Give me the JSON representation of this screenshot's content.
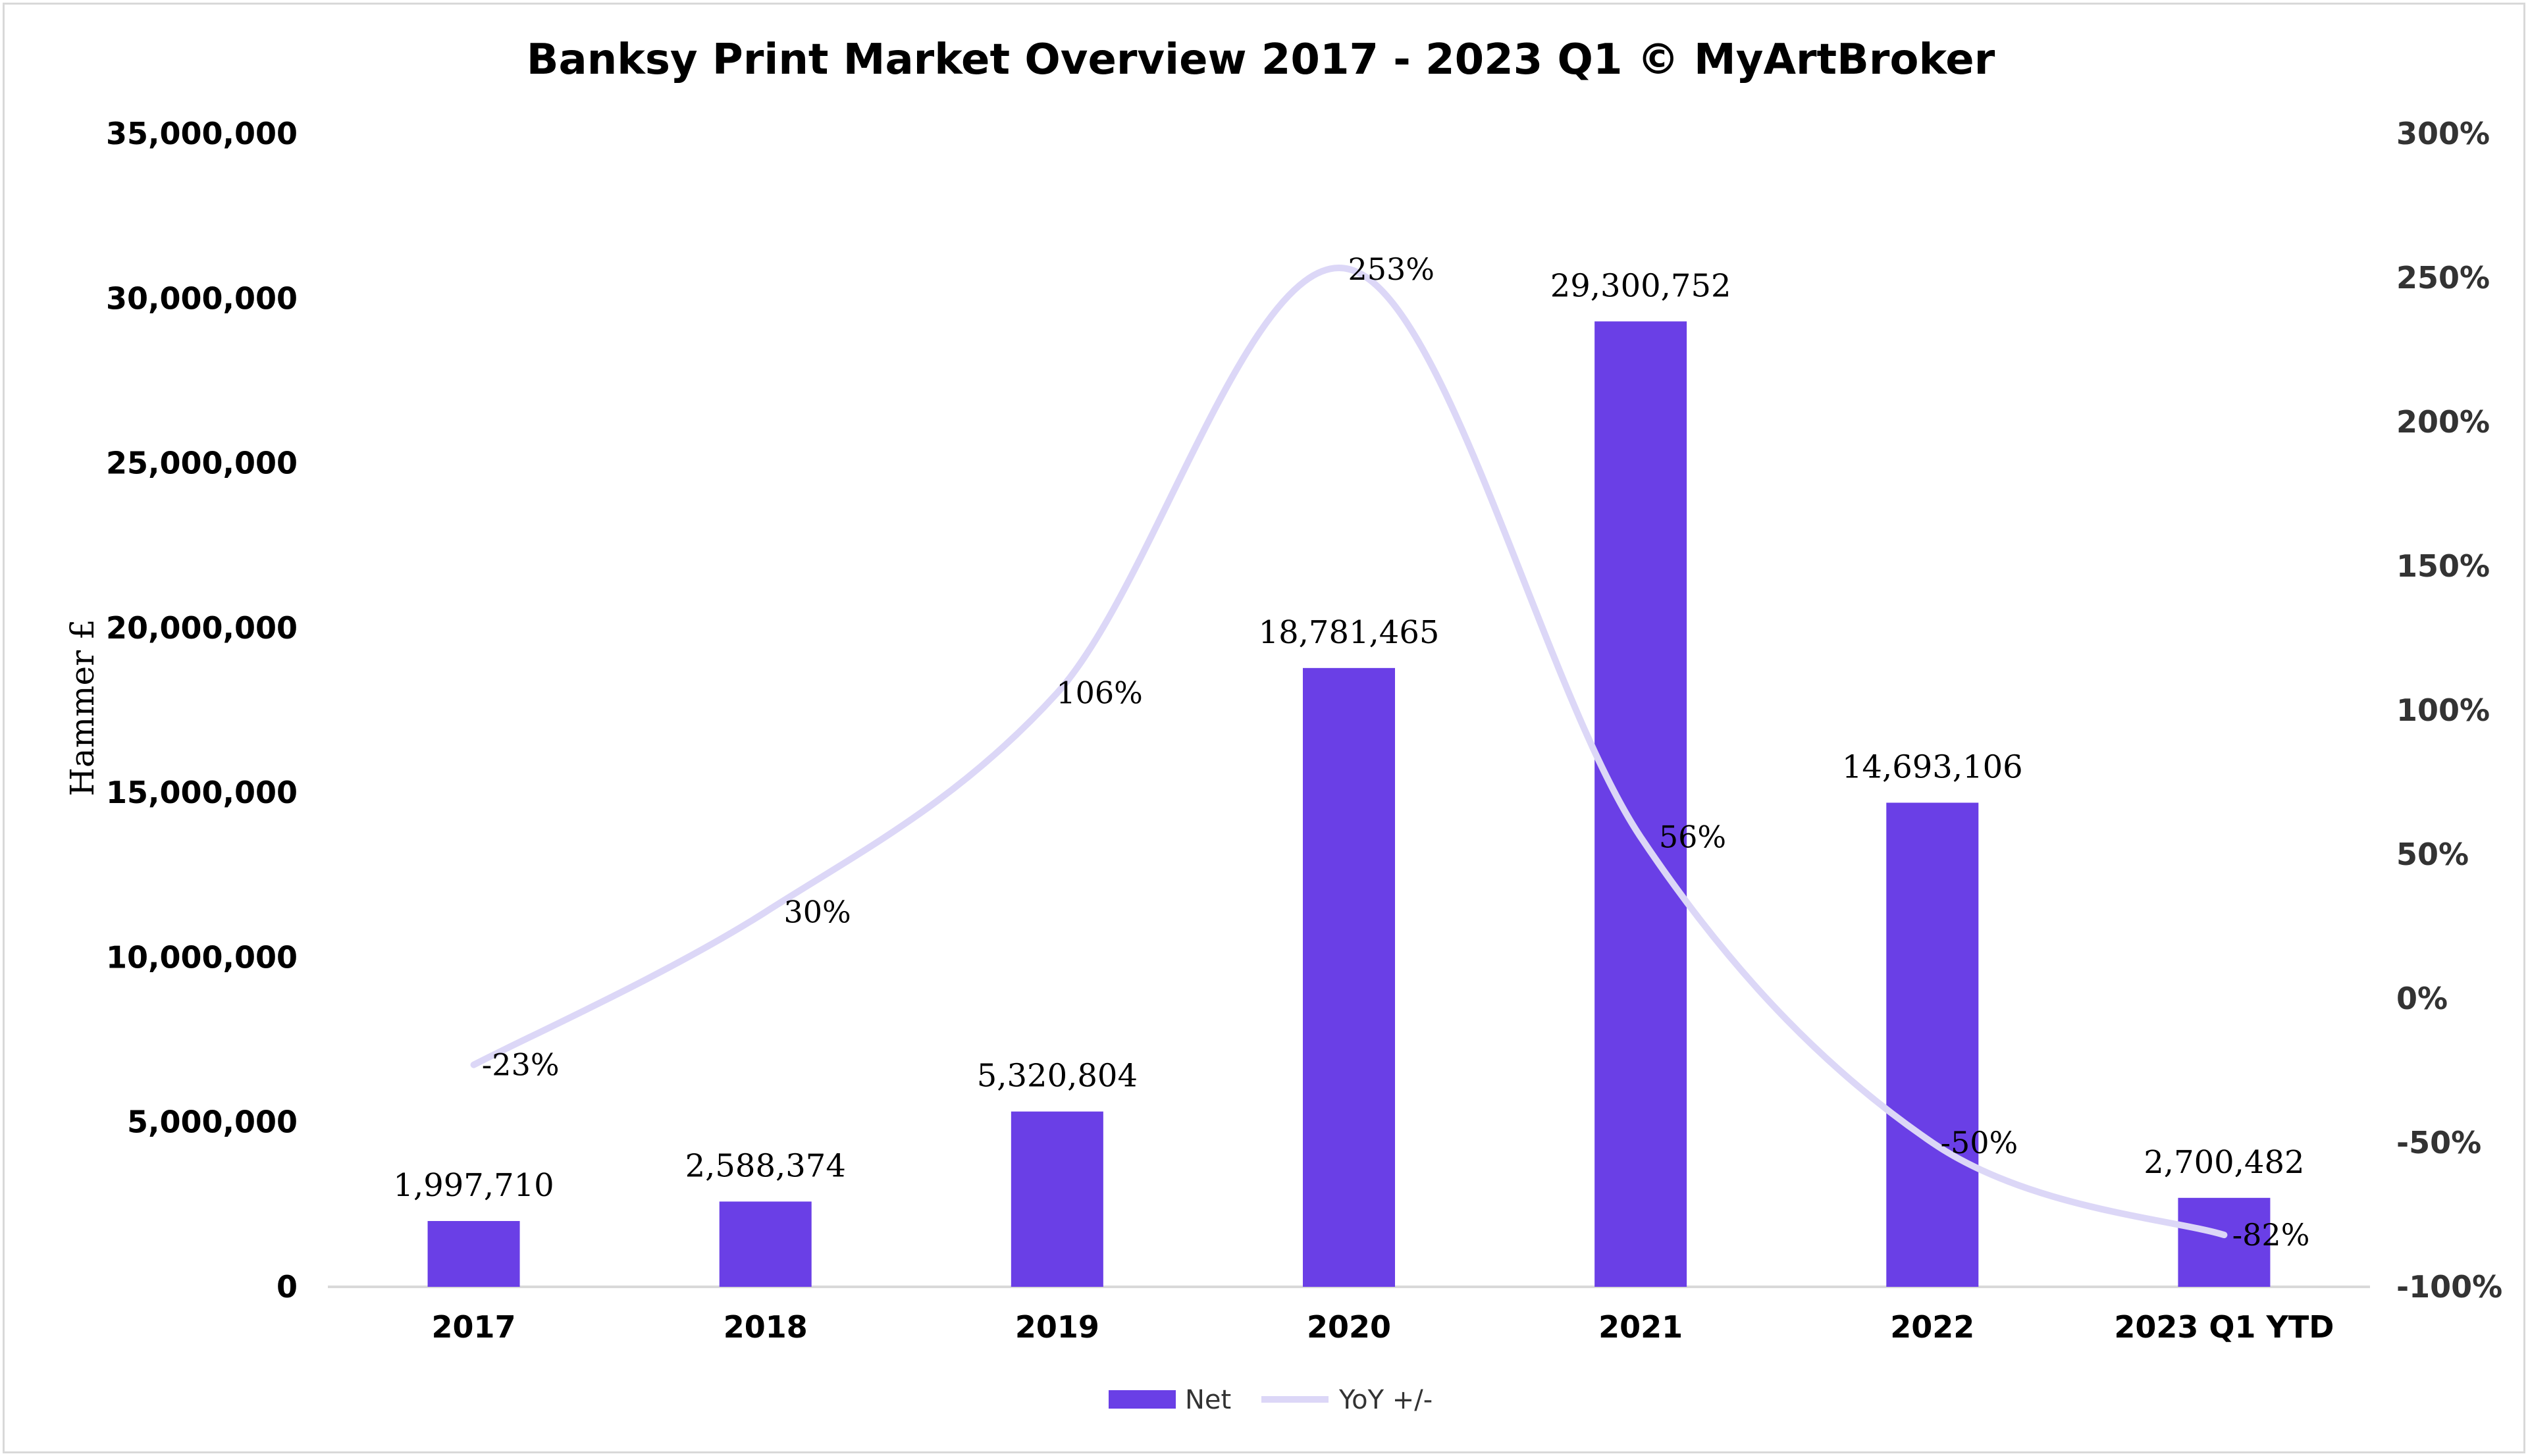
{
  "chart_data": {
    "type": "bar",
    "title": "Banksy Print Market Overview 2017 - 2023 Q1 © MyArtBroker",
    "ylabel": "Hammer £",
    "xlabel": "",
    "categories": [
      "2017",
      "2018",
      "2019",
      "2020",
      "2021",
      "2022",
      "2023 Q1 YTD"
    ],
    "series": [
      {
        "name": "Net",
        "kind": "bar",
        "axis": "left",
        "color": "#6a3fe6",
        "values": [
          1997710,
          2588374,
          5320804,
          18781465,
          29300752,
          14693106,
          2700482
        ],
        "labels": [
          "1,997,710",
          "2,588,374",
          "5,320,804",
          "18,781,465",
          "29,300,752",
          "14,693,106",
          "2,700,482"
        ]
      },
      {
        "name": "YoY +/-",
        "kind": "line",
        "axis": "right",
        "smooth": true,
        "color": "#dcd7f7",
        "values": [
          -23,
          30,
          106,
          253,
          56,
          -50,
          -82
        ],
        "labels": [
          "-23%",
          "30%",
          "106%",
          "253%",
          "56%",
          "-50%",
          "-82%"
        ]
      }
    ],
    "ylim": [
      0,
      35000000
    ],
    "y_ticks": [
      "0",
      "5,000,000",
      "10,000,000",
      "15,000,000",
      "20,000,000",
      "25,000,000",
      "30,000,000",
      "35,000,000"
    ],
    "y2lim": [
      -100,
      300
    ],
    "y2_ticks": [
      "-100%",
      "-50%",
      "0%",
      "50%",
      "100%",
      "150%",
      "200%",
      "250%",
      "300%"
    ],
    "grid": false,
    "legend": "bottom"
  }
}
